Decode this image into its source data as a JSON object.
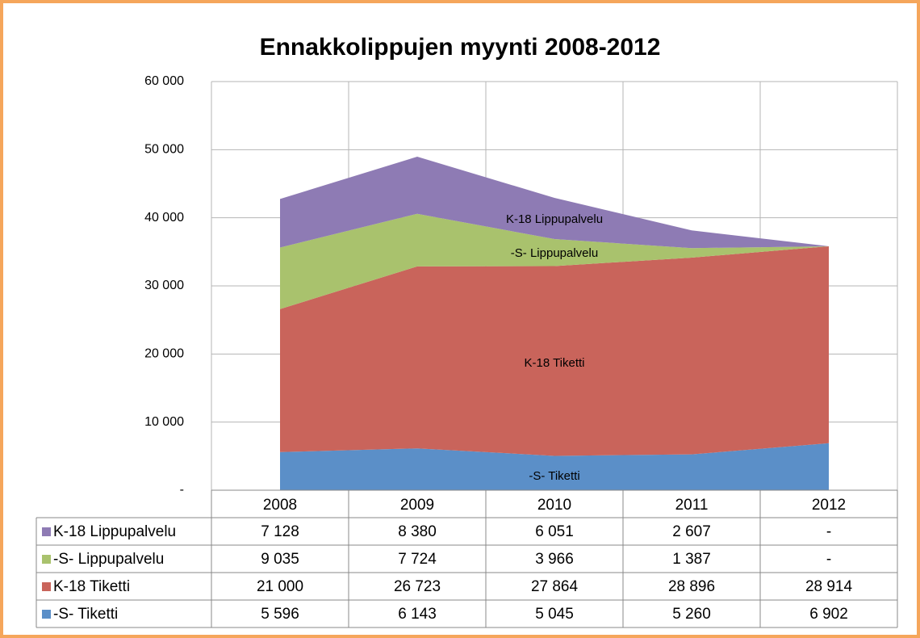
{
  "chart_data": {
    "type": "stacked_area",
    "title": "Ennakkolippujen myynti 2008-2012",
    "categories": [
      "2008",
      "2009",
      "2010",
      "2011",
      "2012"
    ],
    "series": [
      {
        "name": "-S- Tiketti",
        "color": "#5b8fc8",
        "values": [
          5596,
          6143,
          5045,
          5260,
          6902
        ],
        "value_labels": [
          "5 596",
          "6 143",
          "5 045",
          "5 260",
          "6 902"
        ]
      },
      {
        "name": "K-18 Tiketti",
        "color": "#c9645b",
        "values": [
          21000,
          26723,
          27864,
          28896,
          28914
        ],
        "value_labels": [
          "21 000",
          "26 723",
          "27 864",
          "28 896",
          "28 914"
        ]
      },
      {
        "name": "-S- Lippupalvelu",
        "color": "#a9c26d",
        "values": [
          9035,
          7724,
          3966,
          1387,
          0
        ],
        "value_labels": [
          "9 035",
          "7 724",
          "3 966",
          "1 387",
          "-"
        ]
      },
      {
        "name": "K-18 Lippupalvelu",
        "color": "#8e7bb4",
        "values": [
          7128,
          8380,
          6051,
          2607,
          0
        ],
        "value_labels": [
          "7 128",
          "8 380",
          "6 051",
          "2 607",
          "-"
        ]
      }
    ],
    "ylim": [
      0,
      60000
    ],
    "yticks": [
      {
        "value": 0,
        "label": "-"
      },
      {
        "value": 10000,
        "label": "10 000"
      },
      {
        "value": 20000,
        "label": "20 000"
      },
      {
        "value": 30000,
        "label": "30 000"
      },
      {
        "value": 40000,
        "label": "40 000"
      },
      {
        "value": 50000,
        "label": "50 000"
      },
      {
        "value": 60000,
        "label": "60 000"
      }
    ],
    "grid": true
  }
}
